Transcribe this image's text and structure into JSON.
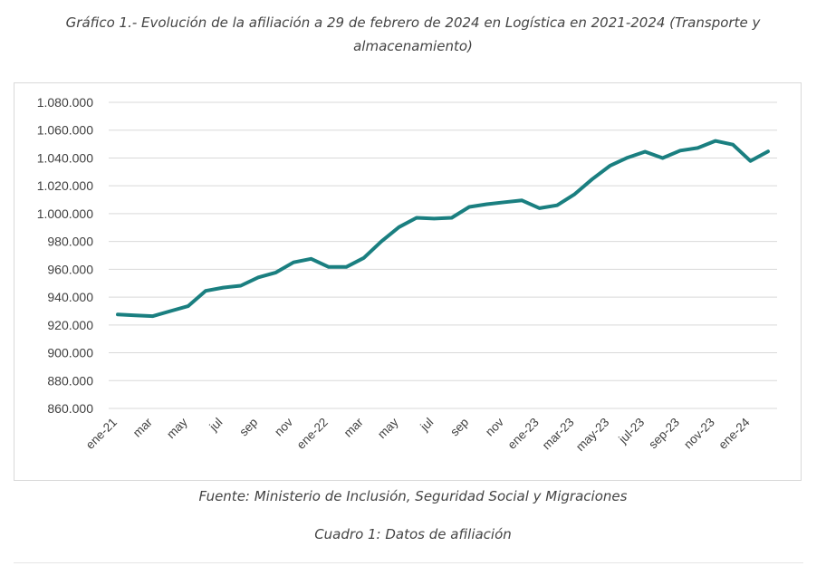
{
  "header": {
    "title": "Gráfico 1.- Evolución de la afiliación a 29 de febrero de 2024 en Logística en 2021-2024 (Transporte y almacenamiento)"
  },
  "footer": {
    "source": "Fuente: Ministerio de Inclusión, Seguridad Social y Migraciones",
    "table_title": "Cuadro 1: Datos de afiliación"
  },
  "colors": {
    "line": "#1a7f80",
    "grid": "#d9d9d9",
    "axis_text": "#404040"
  },
  "chart_data": {
    "type": "line",
    "title": "",
    "xlabel": "",
    "ylabel": "",
    "ylim": [
      860000,
      1080000
    ],
    "y_ticks": [
      860000,
      880000,
      900000,
      920000,
      940000,
      960000,
      980000,
      1000000,
      1020000,
      1040000,
      1060000,
      1080000
    ],
    "y_tick_labels": [
      "860.000",
      "880.000",
      "900.000",
      "920.000",
      "940.000",
      "960.000",
      "980.000",
      "1.000.000",
      "1.020.000",
      "1.040.000",
      "1.060.000",
      "1.080.000"
    ],
    "x_tick_labels": [
      "ene-21",
      "mar",
      "may",
      "jul",
      "sep",
      "nov",
      "ene-22",
      "mar",
      "may",
      "jul",
      "sep",
      "nov",
      "ene-23",
      "mar-23",
      "may-23",
      "jul-23",
      "sep-23",
      "nov-23",
      "ene-24"
    ],
    "grid": true,
    "legend": "none",
    "x": [
      "ene-21",
      "feb-21",
      "mar-21",
      "abr-21",
      "may-21",
      "jun-21",
      "jul-21",
      "ago-21",
      "sep-21",
      "oct-21",
      "nov-21",
      "dic-21",
      "ene-22",
      "feb-22",
      "mar-22",
      "abr-22",
      "may-22",
      "jun-22",
      "jul-22",
      "ago-22",
      "sep-22",
      "oct-22",
      "nov-22",
      "dic-22",
      "ene-23",
      "feb-23",
      "mar-23",
      "abr-23",
      "may-23",
      "jun-23",
      "jul-23",
      "ago-23",
      "sep-23",
      "oct-23",
      "nov-23",
      "dic-23",
      "ene-24",
      "feb-24"
    ],
    "series": [
      {
        "values": [
          927500,
          926900,
          926300,
          930000,
          933500,
          944500,
          946800,
          948200,
          954200,
          957700,
          965000,
          967500,
          961700,
          961700,
          968200,
          980000,
          990300,
          997000,
          996400,
          997000,
          1004800,
          1006800,
          1008200,
          1009500,
          1003900,
          1006000,
          1014000,
          1024800,
          1034400,
          1040200,
          1044500,
          1040000,
          1045300,
          1047200,
          1052300,
          1049600,
          1037800,
          1044700
        ]
      }
    ]
  }
}
